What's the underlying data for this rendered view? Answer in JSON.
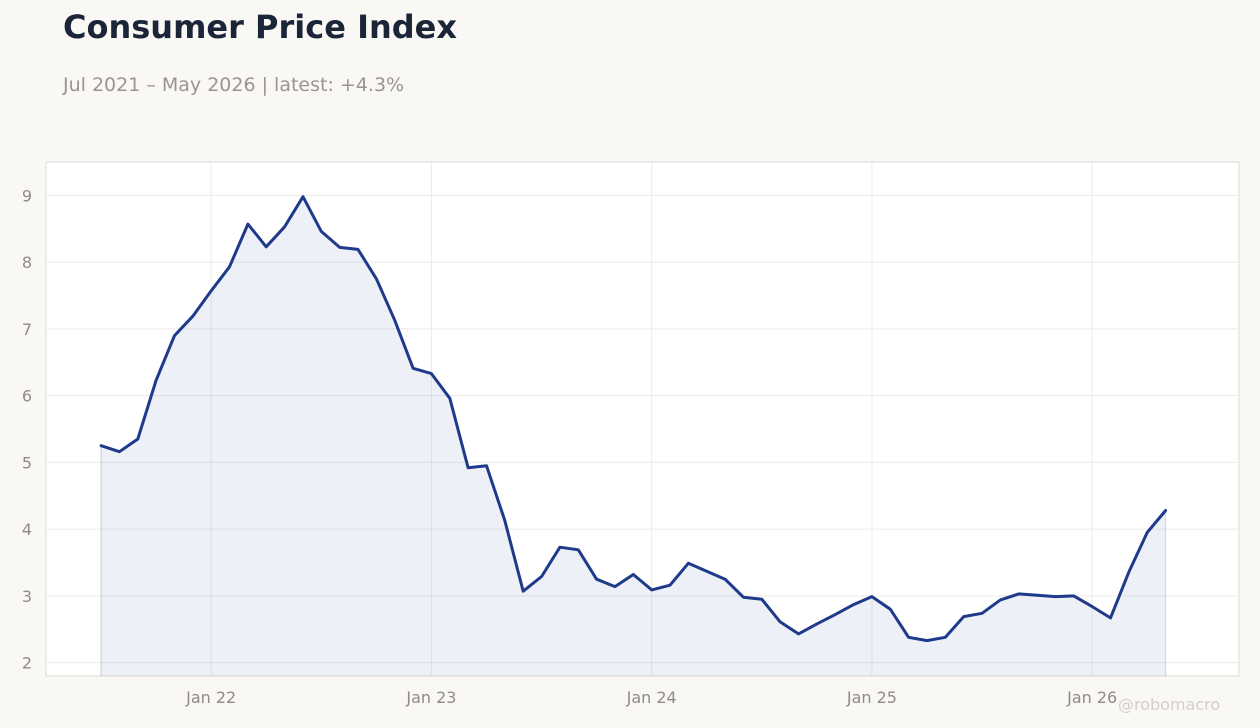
{
  "header": {
    "title": "Consumer Price Index",
    "subtitle": "Jul 2021 – May 2026 | latest: +4.3%"
  },
  "watermark": "@robomacro",
  "colors": {
    "line": "#1f3a8a",
    "area_fill": "#1f3a8a",
    "background": "#f9f8f5",
    "plot_background": "#ffffff",
    "grid": "#ecebe8"
  },
  "chart_data": {
    "type": "area",
    "title": "Consumer Price Index",
    "xlabel": "",
    "ylabel": "",
    "grid": true,
    "legend": "none",
    "ylim": [
      1.8,
      9.5
    ],
    "xlim": [
      "2021-04",
      "2026-09"
    ],
    "y_ticks": [
      2,
      3,
      4,
      5,
      6,
      7,
      8,
      9
    ],
    "x_ticks": [
      {
        "label": "Jan 22",
        "date": "2022-01"
      },
      {
        "label": "Jan 23",
        "date": "2023-01"
      },
      {
        "label": "Jan 24",
        "date": "2024-01"
      },
      {
        "label": "Jan 25",
        "date": "2025-01"
      },
      {
        "label": "Jan 26",
        "date": "2026-01"
      }
    ],
    "x": [
      "2021-07",
      "2021-08",
      "2021-09",
      "2021-10",
      "2021-11",
      "2021-12",
      "2022-01",
      "2022-02",
      "2022-03",
      "2022-04",
      "2022-05",
      "2022-06",
      "2022-07",
      "2022-08",
      "2022-09",
      "2022-10",
      "2022-11",
      "2022-12",
      "2023-01",
      "2023-02",
      "2023-03",
      "2023-04",
      "2023-05",
      "2023-06",
      "2023-07",
      "2023-08",
      "2023-09",
      "2023-10",
      "2023-11",
      "2023-12",
      "2024-01",
      "2024-02",
      "2024-03",
      "2024-04",
      "2024-05",
      "2024-06",
      "2024-07",
      "2024-08",
      "2024-09",
      "2024-10",
      "2024-11",
      "2024-12",
      "2025-01",
      "2025-02",
      "2025-03",
      "2025-04",
      "2025-05",
      "2025-06",
      "2025-07",
      "2025-08",
      "2025-09",
      "2025-10",
      "2025-11",
      "2025-12",
      "2026-01",
      "2026-02",
      "2026-03",
      "2026-04",
      "2026-05"
    ],
    "series": [
      {
        "values": [
          5.25,
          5.16,
          5.35,
          6.23,
          6.9,
          7.19,
          7.57,
          7.93,
          8.57,
          8.23,
          8.53,
          8.98,
          8.46,
          8.22,
          8.19,
          7.75,
          7.13,
          6.41,
          6.33,
          5.96,
          4.92,
          4.95,
          4.13,
          3.07,
          3.29,
          3.73,
          3.69,
          3.25,
          3.14,
          3.32,
          3.09,
          3.16,
          3.49,
          3.37,
          3.25,
          2.98,
          2.95,
          2.61,
          2.43,
          2.58,
          2.72,
          2.87,
          2.99,
          2.8,
          2.38,
          2.33,
          2.38,
          2.69,
          2.74,
          2.94,
          3.03,
          3.01,
          2.99,
          3.0,
          2.84,
          2.67,
          3.36,
          3.95,
          4.28
        ]
      }
    ]
  }
}
